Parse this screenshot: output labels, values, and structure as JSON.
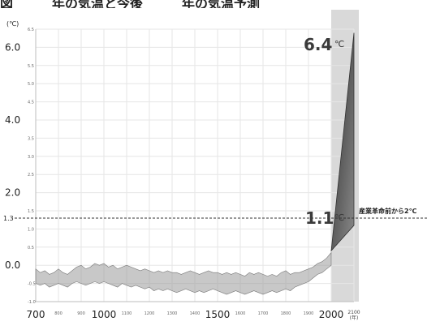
{
  "header": {
    "title": "図　　　年の気温と今後　　　年の気温予測"
  },
  "chart_data": {
    "type": "area",
    "title": "",
    "xlabel": "",
    "ylabel": "",
    "y_unit": "(℃)",
    "x_unit_lines": [
      "2100",
      "(年)"
    ],
    "xlim": [
      700,
      2100
    ],
    "ylim": [
      -1.0,
      6.5
    ],
    "x_ticks_major": [
      700,
      1000,
      1500,
      2000
    ],
    "x_ticks_minor": [
      800,
      900,
      1100,
      1200,
      1300,
      1400,
      1600,
      1700,
      1800,
      1900
    ],
    "y_ticks_major": [
      0.0,
      2.0,
      4.0,
      6.0
    ],
    "y_ticks_minor": [
      -1.0,
      -0.5,
      0.5,
      1.0,
      1.5,
      2.5,
      3.0,
      3.5,
      4.5,
      5.0,
      5.5,
      6.5
    ],
    "grid": true,
    "shaded_period": [
      2000,
      2100
    ],
    "reference_line": {
      "value": 1.3,
      "label_value": "1.3",
      "text": "産業革命前から2℃"
    },
    "annotations": [
      {
        "text": "6.4",
        "unit": "℃"
      },
      {
        "text": "1.1",
        "unit": "℃"
      }
    ],
    "series": [
      {
        "x": [
          700,
          720,
          740,
          760,
          780,
          800,
          820,
          840,
          860,
          880,
          900,
          920,
          940,
          960,
          980,
          1000,
          1020,
          1040,
          1060,
          1080,
          1100,
          1120,
          1140,
          1160,
          1180,
          1200,
          1220,
          1240,
          1260,
          1280,
          1300,
          1320,
          1340,
          1360,
          1380,
          1400,
          1420,
          1440,
          1460,
          1480,
          1500,
          1520,
          1540,
          1560,
          1580,
          1600,
          1620,
          1640,
          1660,
          1680,
          1700,
          1720,
          1740,
          1760,
          1780,
          1800,
          1820,
          1840,
          1860,
          1880,
          1900,
          1920,
          1940,
          1960,
          1980,
          2000
        ],
        "upper": [
          -0.1,
          -0.2,
          -0.15,
          -0.25,
          -0.2,
          -0.1,
          -0.2,
          -0.25,
          -0.15,
          -0.05,
          0.0,
          -0.1,
          -0.05,
          0.05,
          0.0,
          0.05,
          -0.05,
          0.0,
          -0.1,
          -0.05,
          0.0,
          -0.05,
          -0.1,
          -0.15,
          -0.1,
          -0.15,
          -0.2,
          -0.15,
          -0.2,
          -0.15,
          -0.2,
          -0.2,
          -0.25,
          -0.2,
          -0.15,
          -0.2,
          -0.25,
          -0.2,
          -0.15,
          -0.2,
          -0.2,
          -0.25,
          -0.2,
          -0.25,
          -0.2,
          -0.25,
          -0.3,
          -0.2,
          -0.25,
          -0.2,
          -0.25,
          -0.3,
          -0.25,
          -0.3,
          -0.2,
          -0.15,
          -0.25,
          -0.2,
          -0.2,
          -0.15,
          -0.1,
          -0.05,
          0.05,
          0.1,
          0.2,
          0.35
        ],
        "lower": [
          -0.5,
          -0.55,
          -0.5,
          -0.6,
          -0.55,
          -0.5,
          -0.55,
          -0.6,
          -0.5,
          -0.45,
          -0.5,
          -0.55,
          -0.5,
          -0.45,
          -0.5,
          -0.45,
          -0.5,
          -0.55,
          -0.6,
          -0.5,
          -0.55,
          -0.6,
          -0.55,
          -0.6,
          -0.65,
          -0.6,
          -0.7,
          -0.65,
          -0.7,
          -0.65,
          -0.7,
          -0.75,
          -0.7,
          -0.65,
          -0.7,
          -0.75,
          -0.7,
          -0.75,
          -0.7,
          -0.65,
          -0.7,
          -0.75,
          -0.8,
          -0.75,
          -0.7,
          -0.75,
          -0.8,
          -0.75,
          -0.7,
          -0.75,
          -0.8,
          -0.75,
          -0.7,
          -0.75,
          -0.7,
          -0.65,
          -0.7,
          -0.6,
          -0.55,
          -0.5,
          -0.45,
          -0.35,
          -0.25,
          -0.2,
          -0.1,
          0.0
        ]
      },
      {
        "x": [
          2000,
          2100
        ],
        "upper": [
          0.4,
          6.4
        ],
        "lower": [
          0.4,
          1.1
        ]
      }
    ],
    "colors": {
      "band": "#9a9a9a",
      "projection_dark": "#2e2e2e",
      "projection_light": "#8a8a8a",
      "shade": "#d9d9d9",
      "grid": "#e6e6e6",
      "axis_text": "#222222"
    }
  }
}
